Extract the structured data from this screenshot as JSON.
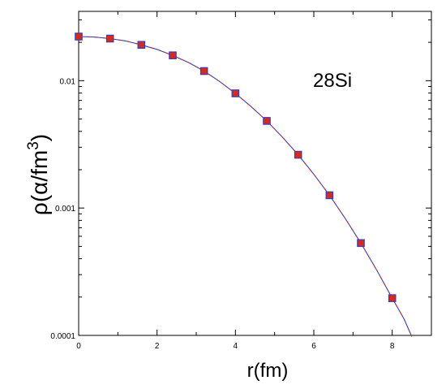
{
  "chart_data": {
    "type": "scatter",
    "xlabel": "r(fm)",
    "ylabel": "ρ(α/fm³)",
    "ylabel_base": "ρ(α/fm",
    "ylabel_sup": "3",
    "ylabel_close": ")",
    "annotation": "28Si",
    "x_scale": "linear",
    "y_scale": "log",
    "xlim": [
      0,
      9
    ],
    "ylim": [
      0.0001,
      0.035
    ],
    "x_ticks": [
      0,
      2,
      4,
      6,
      8
    ],
    "x_tick_labels": [
      "0",
      "2",
      "4",
      "6",
      "8"
    ],
    "y_ticks": [
      0.001,
      0.01,
      0.0001
    ],
    "y_tick_labels": [
      "0.001",
      "0.01",
      "0.0001"
    ],
    "grid": false,
    "series": [
      {
        "kind": "points",
        "marker": "square",
        "fill_color": "#d42a22",
        "edge_color": "#3a3fb0",
        "x": [
          0,
          0.8,
          1.6,
          2.4,
          3.2,
          4.0,
          4.8,
          5.6,
          6.4,
          7.2,
          8.0
        ],
        "y": [
          0.0222,
          0.0214,
          0.0191,
          0.0158,
          0.0119,
          0.00795,
          0.00483,
          0.00262,
          0.00126,
          0.000531,
          0.000196
        ]
      },
      {
        "kind": "curve",
        "line_color": "#3a3fb0",
        "accent_color": "#d42a22",
        "x": [
          0,
          0.4,
          0.8,
          1.2,
          1.6,
          2.0,
          2.4,
          2.8,
          3.2,
          3.6,
          4.0,
          4.4,
          4.8,
          5.2,
          5.6,
          6.0,
          6.4,
          6.8,
          7.2,
          7.6,
          8.0,
          8.3,
          8.5
        ],
        "y": [
          0.0222,
          0.022,
          0.0214,
          0.0205,
          0.0191,
          0.0176,
          0.0158,
          0.0139,
          0.0119,
          0.00985,
          0.00795,
          0.00625,
          0.00483,
          0.0036,
          0.00262,
          0.00184,
          0.00126,
          0.00083,
          0.000531,
          0.000328,
          0.000196,
          0.000135,
          9.8e-05
        ]
      }
    ]
  }
}
